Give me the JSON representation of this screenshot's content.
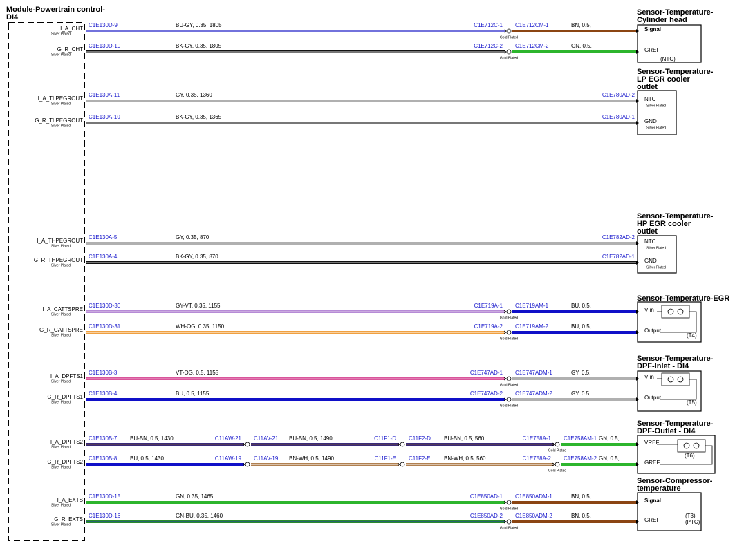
{
  "module": {
    "title": [
      "Module-Powertrain control-",
      "DI4"
    ]
  },
  "circuits": [
    {
      "pin": "I_A_CHT",
      "plating": "Silver Plated",
      "segments": [
        {
          "from": "C1E130D-9",
          "spec": "BU-GY, 0.35, 1805",
          "to": "C1E712C-1",
          "plating": "Gold Plated",
          "color": "#1c1cd0",
          "stripe": "#c8c8e8"
        },
        {
          "from": "C1E712CM-1",
          "spec": "BN, 0.5,",
          "color": "#8b4513"
        }
      ]
    },
    {
      "pin": "G_R_CHT",
      "plating": "Silver Plated",
      "segments": [
        {
          "from": "C1E130D-10",
          "spec": "BK-GY, 0.35, 1805",
          "to": "C1E712C-2",
          "plating": "Gold Plated",
          "color": "#111111",
          "stripe": "#dddddd"
        },
        {
          "from": "C1E712CM-2",
          "spec": "GN, 0.5,",
          "color": "#2db52d"
        }
      ]
    },
    {
      "pin": "I_A_TLPEGROUT",
      "plating": "Silver Plated",
      "segments": [
        {
          "from": "C1E130A-11",
          "spec": "GY, 0.35, 1360",
          "to": "C1E780AD-2",
          "color": "#b0b0b0"
        }
      ]
    },
    {
      "pin": "G_R_TLPEGROUT",
      "plating": "Silver Plated",
      "segments": [
        {
          "from": "C1E130A-10",
          "spec": "BK-GY, 0.35, 1365",
          "to": "C1E780AD-1",
          "color": "#111111",
          "stripe": "#dddddd"
        }
      ]
    },
    {
      "pin": "I_A_THPEGROUT",
      "plating": "Silver Plated",
      "segments": [
        {
          "from": "C1E130A-5",
          "spec": "GY, 0.35, 870",
          "to": "C1E782AD-2",
          "color": "#b0b0b0"
        }
      ]
    },
    {
      "pin": "G_R_THPEGROUT",
      "plating": "Silver Plated",
      "segments": [
        {
          "from": "C1E130A-4",
          "spec": "BK-GY, 0.35, 870",
          "to": "C1E782AD-1",
          "color": "#111111",
          "stripe": "#dddddd"
        }
      ]
    },
    {
      "pin": "I_A_CATTSPRE",
      "plating": "Silver Plated",
      "segments": [
        {
          "from": "C1E130D-30",
          "spec": "GY-VT, 0.35, 1155",
          "to": "C1E719A-1",
          "plating": "Gold Plated",
          "color": "#b68bd6",
          "stripe": "#e0c8e8"
        },
        {
          "from": "C1E719AM-1",
          "spec": "BU, 0.5,",
          "color": "#1010c8"
        }
      ]
    },
    {
      "pin": "G_R_CATTSPRE",
      "plating": "Silver Plated",
      "segments": [
        {
          "from": "C1E130D-31",
          "spec": "WH-OG, 0.35, 1150",
          "to": "C1E719A-2",
          "plating": "Gold Plated",
          "color": "#f0a040",
          "stripe": "#ffffff"
        },
        {
          "from": "C1E719AM-2",
          "spec": "BU, 0.5,",
          "color": "#1010c8"
        }
      ]
    },
    {
      "pin": "I_A_DPFTS1",
      "plating": "Silver Plated",
      "segments": [
        {
          "from": "C1E130B-3",
          "spec": "VT-OG, 0.5, 1155",
          "to": "C1E747AD-1",
          "plating": "Gold Plated",
          "color": "#d9559b",
          "stripe": "#eaa0c8"
        },
        {
          "from": "C1E747ADM-1",
          "spec": "GY, 0.5,",
          "color": "#b0b0b0"
        }
      ]
    },
    {
      "pin": "G_R_DPFTS1",
      "plating": "Silver Plated",
      "segments": [
        {
          "from": "C1E130B-4",
          "spec": "BU, 0.5, 1155",
          "to": "C1E747AD-2",
          "plating": "Gold Plated",
          "color": "#1010c8"
        },
        {
          "from": "C1E747ADM-2",
          "spec": "GY, 0.5,",
          "color": "#b0b0b0"
        }
      ]
    },
    {
      "pin": "I_A_DPFTS2",
      "plating": "Silver Plated",
      "segments": [
        {
          "from": "C1E130B-7",
          "spec": "BU-BN, 0.5, 1430",
          "to": "C11AW-21",
          "color": "#3a2a7a",
          "stripe": "#6a4a3a"
        },
        {
          "from": "C11AV-21",
          "spec": "BU-BN, 0.5, 1490",
          "to": "C11F1-D",
          "color": "#3a2a7a",
          "stripe": "#6a4a3a"
        },
        {
          "from": "C11F2-D",
          "spec": "BU-BN, 0.5, 560",
          "to": "C1E758A-1",
          "plating": "Gold Plated",
          "color": "#3a2a7a",
          "stripe": "#6a4a3a"
        },
        {
          "from": "C1E758AM-1",
          "spec": "GN, 0.5,",
          "color": "#2db52d"
        }
      ]
    },
    {
      "pin": "G_R_DPFTS2",
      "plating": "Silver Plated",
      "segments": [
        {
          "from": "C1E130B-8",
          "spec": "BU, 0.5, 1430",
          "to": "C11AW-19",
          "color": "#1010c8"
        },
        {
          "from": "C11AV-19",
          "spec": "BN-WH, 0.5, 1490",
          "to": "C11F1-E",
          "color": "#b08050",
          "stripe": "#ffffff"
        },
        {
          "from": "C11F2-E",
          "spec": "BN-WH, 0.5, 560",
          "to": "C1E758A-2",
          "plating": "Gold Plated",
          "color": "#b08050",
          "stripe": "#ffffff"
        },
        {
          "from": "C1E758AM-2",
          "spec": "GN, 0.5,",
          "color": "#2db52d"
        }
      ]
    },
    {
      "pin": "I_A_EXTS",
      "plating": "Silver Plated",
      "segments": [
        {
          "from": "C1E130D-15",
          "spec": "GN, 0.35, 1465",
          "to": "C1E850AD-1",
          "plating": "Gold Plated",
          "color": "#2db52d"
        },
        {
          "from": "C1E850ADM-1",
          "spec": "BN, 0.5,",
          "color": "#8b4513"
        }
      ]
    },
    {
      "pin": "G_R_EXTS",
      "plating": "Silver Plated",
      "segments": [
        {
          "from": "C1E130D-16",
          "spec": "GN-BU, 0.35, 1460",
          "to": "C1E850AD-2",
          "plating": "Gold Plated",
          "color": "#2a8a2a",
          "stripe": "#2040b0"
        },
        {
          "from": "C1E850ADM-2",
          "spec": "BN, 0.5,",
          "color": "#8b4513"
        }
      ]
    }
  ],
  "sensors": [
    {
      "title": [
        "Sensor-Temperature-",
        "Cylinder head"
      ],
      "pins": [
        {
          "label": "Signal"
        },
        {
          "label": "GREF"
        }
      ],
      "notes": [
        "(NTC)"
      ]
    },
    {
      "title": [
        "Sensor-Temperature-",
        "LP EGR cooler",
        "outlet"
      ],
      "pins": [
        {
          "label": "NTC",
          "plating": "Silver Plated"
        },
        {
          "label": "GND",
          "plating": "Silver Plated"
        }
      ]
    },
    {
      "title": [
        "Sensor-Temperature-",
        "HP EGR cooler",
        "outlet"
      ],
      "pins": [
        {
          "label": "NTC",
          "plating": "Silver Plated"
        },
        {
          "label": "GND",
          "plating": "Silver Plated"
        }
      ]
    },
    {
      "title": [
        "Sensor-Temperature-EGR"
      ],
      "pins": [
        {
          "label": "V in"
        },
        {
          "label": "Output"
        }
      ],
      "notes": [
        "(T4)"
      ]
    },
    {
      "title": [
        "Sensor-Temperature-",
        "DPF-Inlet - DI4"
      ],
      "pins": [
        {
          "label": "V in"
        },
        {
          "label": "Output"
        }
      ],
      "notes": [
        "(T5)"
      ]
    },
    {
      "title": [
        "Sensor-Temperature-",
        "DPF-Outlet - DI4"
      ],
      "pins": [
        {
          "label": "VREF"
        },
        {
          "label": "GREF"
        }
      ],
      "notes": [
        "(T6)"
      ]
    },
    {
      "title": [
        "Sensor-Compressor-",
        "temperature"
      ],
      "pins": [
        {
          "label": "Signal"
        },
        {
          "label": "GREF"
        }
      ],
      "notes": [
        "(T3)",
        "(PTC)"
      ]
    }
  ]
}
